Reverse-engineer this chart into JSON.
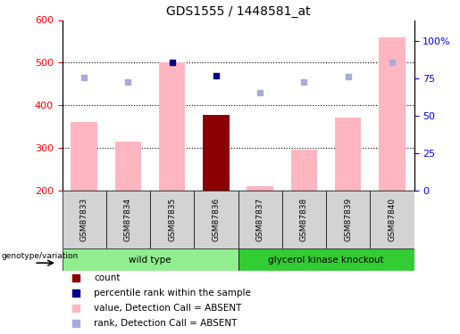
{
  "title": "GDS1555 / 1448581_at",
  "samples": [
    "GSM87833",
    "GSM87834",
    "GSM87835",
    "GSM87836",
    "GSM87837",
    "GSM87838",
    "GSM87839",
    "GSM87840"
  ],
  "pink_bar_values": [
    360,
    315,
    500,
    null,
    210,
    295,
    370,
    560
  ],
  "dark_red_bar_values": [
    null,
    null,
    null,
    378,
    null,
    null,
    null,
    null
  ],
  "dark_blue_squares": [
    null,
    null,
    500,
    470,
    null,
    null,
    null,
    null
  ],
  "light_blue_squares": [
    465,
    455,
    null,
    null,
    430,
    455,
    468,
    500
  ],
  "ylim_left": [
    200,
    600
  ],
  "yticks_left": [
    200,
    300,
    400,
    500,
    600
  ],
  "right_tick_positions": [
    200,
    287.5,
    375,
    462.5,
    550
  ],
  "ytick_labels_right": [
    "0",
    "25",
    "50",
    "75",
    "100%"
  ],
  "groups": [
    {
      "label": "wild type",
      "indices": [
        0,
        1,
        2,
        3
      ],
      "color": "#90EE90"
    },
    {
      "label": "glycerol kinase knockout",
      "indices": [
        4,
        5,
        6,
        7
      ],
      "color": "#32CD32"
    }
  ],
  "bar_width": 0.6,
  "pink_color": "#FFB6C1",
  "dark_red_color": "#8B0000",
  "dark_blue_color": "#00008B",
  "light_blue_color": "#AAAADD",
  "dotted_line_values": [
    300,
    400,
    500
  ],
  "background_color": "#FFFFFF",
  "legend_items": [
    {
      "label": "count",
      "color": "#8B0000"
    },
    {
      "label": "percentile rank within the sample",
      "color": "#00008B"
    },
    {
      "label": "value, Detection Call = ABSENT",
      "color": "#FFB6C1"
    },
    {
      "label": "rank, Detection Call = ABSENT",
      "color": "#AAAADD"
    }
  ]
}
